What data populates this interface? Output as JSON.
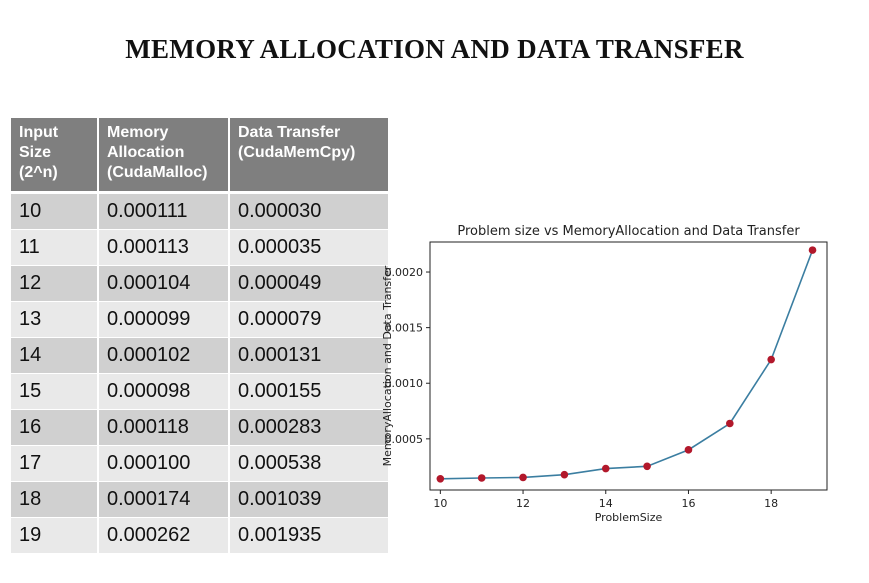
{
  "slide": {
    "title": "MEMORY ALLOCATION AND DATA TRANSFER"
  },
  "table": {
    "headers": [
      "Input Size (2^n)",
      "Memory Allocation (CudaMalloc)",
      "Data Transfer (CudaMemCpy)"
    ],
    "rows": [
      [
        "10",
        "0.000111",
        "0.000030"
      ],
      [
        "11",
        "0.000113",
        "0.000035"
      ],
      [
        "12",
        "0.000104",
        "0.000049"
      ],
      [
        "13",
        "0.000099",
        "0.000079"
      ],
      [
        "14",
        "0.000102",
        "0.000131"
      ],
      [
        "15",
        "0.000098",
        "0.000155"
      ],
      [
        "16",
        "0.000118",
        "0.000283"
      ],
      [
        "17",
        "0.000100",
        "0.000538"
      ],
      [
        "18",
        "0.000174",
        "0.001039"
      ],
      [
        "19",
        "0.000262",
        "0.001935"
      ]
    ]
  },
  "chart_data": {
    "type": "line",
    "title": "Problem size vs MemoryAllocation and Data Transfer",
    "xlabel": "ProblemSize",
    "ylabel": "MemoryAllocation and Data Transfer",
    "x": [
      10,
      11,
      12,
      13,
      14,
      15,
      16,
      17,
      18,
      19
    ],
    "series": [
      {
        "values": [
          0.000141,
          0.000148,
          0.000153,
          0.000178,
          0.000233,
          0.000253,
          0.000401,
          0.000638,
          0.001213,
          0.002197
        ]
      }
    ],
    "xlim": [
      9.75,
      19.35
    ],
    "ylim": [
      4e-05,
      0.00227
    ],
    "xticks": [
      10,
      12,
      14,
      16,
      18
    ],
    "yticks": [
      0.0005,
      0.001,
      0.0015,
      0.002
    ],
    "ytick_labels": [
      "0.0005",
      "0.0010",
      "0.0015",
      "0.0020"
    ],
    "line_color": "#3b7ea1",
    "marker_color": "#b2182b",
    "grid": false,
    "legend": "none"
  }
}
